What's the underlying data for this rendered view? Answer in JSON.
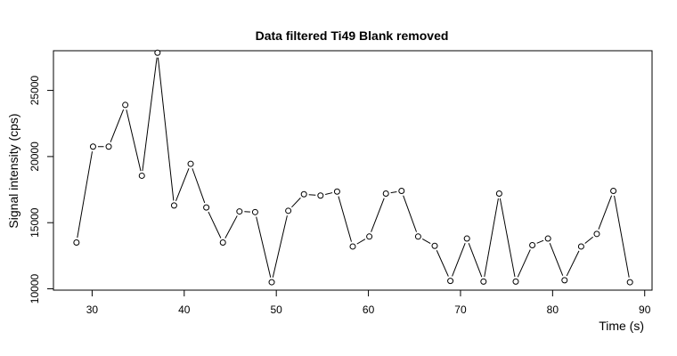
{
  "chart_data": {
    "type": "line",
    "title": "Data filtered Ti49 Blank removed",
    "xlabel": "Time (s)",
    "ylabel": "Signal intensity (cps)",
    "xlim": [
      25.8,
      90.8
    ],
    "ylim": [
      9900,
      28000
    ],
    "xticks": [
      30,
      40,
      50,
      60,
      70,
      80,
      90
    ],
    "yticks": [
      10000,
      15000,
      20000,
      25000
    ],
    "grid": false,
    "markers": "open-circle",
    "series": [
      {
        "x": [
          28.3,
          30.1,
          31.8,
          33.6,
          35.4,
          37.1,
          38.9,
          40.7,
          42.4,
          44.2,
          46.0,
          47.7,
          49.5,
          51.3,
          53.0,
          54.8,
          56.6,
          58.3,
          60.1,
          61.9,
          63.6,
          65.4,
          67.2,
          68.9,
          70.7,
          72.5,
          74.2,
          76.0,
          77.8,
          79.5,
          81.3,
          83.1,
          84.8,
          86.6,
          88.4
        ],
        "y": [
          13500,
          20750,
          20750,
          23900,
          18550,
          27850,
          16300,
          19450,
          16150,
          13500,
          15850,
          15800,
          10500,
          15900,
          17150,
          17050,
          17350,
          13200,
          13950,
          17200,
          17400,
          13950,
          13250,
          10600,
          13800,
          10550,
          17200,
          10550,
          13300,
          13800,
          10650,
          13200,
          14150,
          17400,
          10500
        ]
      }
    ]
  }
}
